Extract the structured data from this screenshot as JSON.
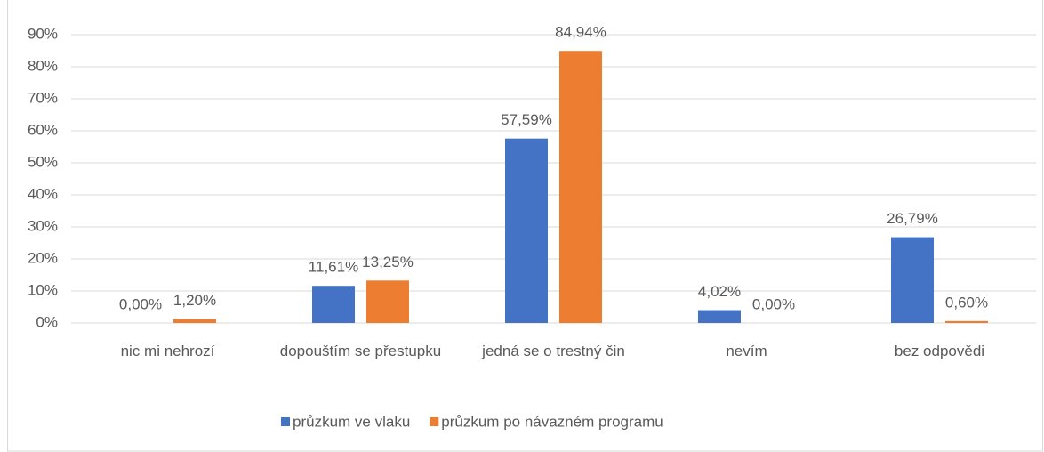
{
  "chart_data": {
    "type": "bar",
    "categories": [
      "nic mi nehrozí",
      "dopouštím se přestupku",
      "jedná se o trestný čin",
      "nevím",
      "bez odpovědi"
    ],
    "series": [
      {
        "name": "průzkum ve vlaku",
        "color": "#4472c4",
        "values": [
          0,
          11.61,
          57.59,
          4.02,
          26.79
        ],
        "value_labels": [
          "0,00%",
          "11,61%",
          "57,59%",
          "4,02%",
          "26,79%"
        ]
      },
      {
        "name": "průzkum po návazném programu",
        "color": "#ed7d31",
        "values": [
          1.2,
          13.25,
          84.94,
          0,
          0.6
        ],
        "value_labels": [
          "1,20%",
          "13,25%",
          "84,94%",
          "0,00%",
          "0,60%"
        ]
      }
    ],
    "ylim": [
      0,
      90
    ],
    "yticks": [
      {
        "value": 0,
        "label": "0%"
      },
      {
        "value": 10,
        "label": "10%"
      },
      {
        "value": 20,
        "label": "20%"
      },
      {
        "value": 30,
        "label": "30%"
      },
      {
        "value": 40,
        "label": "40%"
      },
      {
        "value": 50,
        "label": "50%"
      },
      {
        "value": 60,
        "label": "60%"
      },
      {
        "value": 70,
        "label": "70%"
      },
      {
        "value": 80,
        "label": "80%"
      },
      {
        "value": 90,
        "label": "90%"
      }
    ],
    "grid": true,
    "legend": "bottom"
  }
}
